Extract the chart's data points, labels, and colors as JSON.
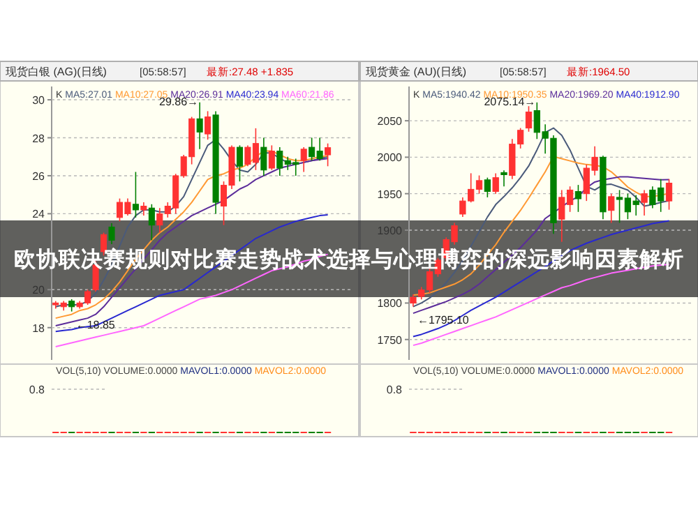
{
  "chart_data": [
    {
      "type": "candlestick",
      "title": "现货白银 (AG)(日线)",
      "subtitle": "欧协联决赛规则对比赛走势战术选择与心理博弈的深远影响因素解析",
      "annotations": [
        "[05:58:57]",
        "最新:27.48 +1.835",
        "K",
        "29.86→",
        "←18.85"
      ],
      "categories": [
        null,
        null,
        null,
        null,
        null,
        null,
        null,
        null,
        null,
        null,
        null,
        null,
        null,
        null,
        null,
        null,
        null,
        null,
        null,
        null,
        null,
        null,
        null,
        null,
        null,
        null,
        null,
        null,
        null,
        null,
        null,
        null,
        null,
        null,
        null
      ],
      "colors": [
        "#ff3232",
        "#ff3232",
        "#008000",
        "#ff3232",
        "#ff3232",
        "#ff3232",
        "#ff3232",
        "#008000",
        "#ff3232",
        "#ff3232",
        "#008000",
        "#ff3232",
        "#008000",
        "#ff3232",
        "#ff3232",
        "#ff3232",
        "#ff3232",
        "#ff3232",
        "#008000",
        "#ff3232",
        "#008000",
        "#ff3232",
        "#ff3232",
        "#008000",
        "#ff3232",
        "#ff3232",
        "#008000",
        "#ff3232",
        "#008000",
        "#008000",
        "#008000",
        "#ff3232",
        "#008000",
        "#008000",
        "#ff3232"
      ],
      "ohlc": [
        [
          19.2,
          19.4,
          19.0,
          19.3
        ],
        [
          19.1,
          19.4,
          18.9,
          19.3
        ],
        [
          19.4,
          19.5,
          18.85,
          19.1
        ],
        [
          19.1,
          19.4,
          19.0,
          19.3
        ],
        [
          19.3,
          20.0,
          19.2,
          19.9
        ],
        [
          20.0,
          21.5,
          19.9,
          21.3
        ],
        [
          22.0,
          23.0,
          21.8,
          22.9
        ],
        [
          23.3,
          23.5,
          22.4,
          22.6
        ],
        [
          23.8,
          24.8,
          23.6,
          24.6
        ],
        [
          24.0,
          24.8,
          23.9,
          24.6
        ],
        [
          24.5,
          26.2,
          23.8,
          24.2
        ],
        [
          24.2,
          24.6,
          23.9,
          24.4
        ],
        [
          24.3,
          24.5,
          22.6,
          23.4
        ],
        [
          23.4,
          24.3,
          23.0,
          24.0
        ],
        [
          24.0,
          24.6,
          23.8,
          24.4
        ],
        [
          24.3,
          26.1,
          24.0,
          26.0
        ],
        [
          26.0,
          27.1,
          25.9,
          27.0
        ],
        [
          27.0,
          29.1,
          26.6,
          29.0
        ],
        [
          29.0,
          29.86,
          27.4,
          28.3
        ],
        [
          28.2,
          29.4,
          27.9,
          29.1
        ],
        [
          29.2,
          29.4,
          24.0,
          24.6
        ],
        [
          24.4,
          25.7,
          23.4,
          25.5
        ],
        [
          25.5,
          27.6,
          25.3,
          27.5
        ],
        [
          27.5,
          27.6,
          25.7,
          26.5
        ],
        [
          26.6,
          27.6,
          26.5,
          27.5
        ],
        [
          26.7,
          28.5,
          26.3,
          27.7
        ],
        [
          27.5,
          28.0,
          26.0,
          26.3
        ],
        [
          26.4,
          27.6,
          26.3,
          27.3
        ],
        [
          27.3,
          27.5,
          26.0,
          26.4
        ],
        [
          26.8,
          27.0,
          26.3,
          26.6
        ],
        [
          26.7,
          26.9,
          26.0,
          26.6
        ],
        [
          26.8,
          27.5,
          26.2,
          27.4
        ],
        [
          27.5,
          28.0,
          26.8,
          27.0
        ],
        [
          27.3,
          28.0,
          26.8,
          26.9
        ],
        [
          27.1,
          27.7,
          26.5,
          27.48
        ]
      ],
      "series": [
        {
          "type": "line",
          "name": "MA5:27.01",
          "color": "#4a5a7a",
          "values": [
            19.1,
            19.2,
            19.2,
            19.2,
            19.4,
            19.8,
            20.5,
            21.3,
            22.3,
            23.3,
            23.9,
            24.2,
            24.2,
            24.1,
            24.1,
            24.4,
            24.9,
            25.8,
            26.7,
            27.6,
            27.9,
            27.4,
            26.8,
            26.3,
            26.2,
            26.6,
            27.2,
            27.2,
            26.9,
            26.7,
            26.6,
            26.7,
            26.8,
            26.9,
            27.01
          ]
        },
        {
          "type": "line",
          "name": "MA10:27.05",
          "color": "#ff9933",
          "values": [
            18.5,
            18.6,
            18.7,
            18.9,
            19.0,
            19.2,
            19.5,
            19.9,
            20.4,
            21.0,
            21.6,
            22.1,
            22.6,
            23.0,
            23.3,
            23.7,
            24.1,
            24.6,
            25.2,
            25.8,
            26.0,
            26.1,
            26.3,
            26.4,
            26.6,
            27.0,
            27.3,
            27.3,
            27.1,
            26.9,
            26.8,
            26.8,
            26.9,
            27.0,
            27.05
          ]
        },
        {
          "type": "line",
          "name": "MA20:26.91",
          "color": "#5b2c9a",
          "values": [
            18.1,
            18.2,
            18.3,
            18.4,
            18.5,
            18.7,
            19.1,
            19.6,
            20.1,
            20.6,
            21.1,
            21.6,
            22.1,
            22.6,
            23.0,
            23.3,
            23.6,
            23.9,
            24.1,
            24.3,
            24.5,
            24.7,
            25.0,
            25.3,
            25.5,
            25.8,
            26.0,
            26.2,
            26.4,
            26.5,
            26.6,
            26.7,
            26.8,
            26.85,
            26.91
          ]
        },
        {
          "type": "line",
          "name": "MA40:23.94",
          "color": "#2828d0",
          "values": [
            17.8,
            17.85,
            17.9,
            18.0,
            18.05,
            18.1,
            18.3,
            18.5,
            18.7,
            18.9,
            19.1,
            19.3,
            19.5,
            19.7,
            19.8,
            19.9,
            20.0,
            20.3,
            20.6,
            20.9,
            21.2,
            21.5,
            21.8,
            22.1,
            22.4,
            22.7,
            22.9,
            23.1,
            23.3,
            23.45,
            23.6,
            23.7,
            23.8,
            23.9,
            23.94
          ]
        },
        {
          "type": "line",
          "name": "MA60:21.86",
          "color": "#ff66ff",
          "values": [
            17.0,
            17.1,
            17.2,
            17.3,
            17.4,
            17.5,
            17.6,
            17.7,
            17.8,
            17.9,
            18.0,
            18.1,
            18.3,
            18.5,
            18.7,
            18.9,
            19.1,
            19.3,
            19.5,
            19.6,
            19.7,
            19.85,
            20.0,
            20.2,
            20.4,
            20.6,
            20.8,
            21.0,
            21.1,
            21.2,
            21.35,
            21.5,
            21.6,
            21.75,
            21.86
          ]
        }
      ],
      "ylim": [
        16.3,
        30.7
      ],
      "yticks": [
        30,
        28,
        26,
        24,
        20,
        18
      ],
      "grid": "y",
      "legend": "top left"
    },
    {
      "type": "candlestick",
      "title": "现货黄金 (AU)(日线)",
      "annotations": [
        "[05:58:57]",
        "最新:1964.50",
        "K",
        "2075.14→",
        "←1795.10"
      ],
      "categories": [
        null,
        null,
        null,
        null,
        null,
        null,
        null,
        null,
        null,
        null,
        null,
        null,
        null,
        null,
        null,
        null,
        null,
        null,
        null,
        null,
        null,
        null,
        null,
        null,
        null,
        null,
        null,
        null,
        null,
        null,
        null,
        null
      ],
      "colors": [
        "#ff3232",
        "#ff3232",
        "#ff3232",
        "#ff3232",
        "#ff3232",
        "#ff3232",
        "#ff3232",
        "#ff3232",
        "#ff3232",
        "#008000",
        "#ff3232",
        "#008000",
        "#ff3232",
        "#ff3232",
        "#ff3232",
        "#008000",
        "#008000",
        "#008000",
        "#ff3232",
        "#ff3232",
        "#008000",
        "#ff3232",
        "#ff3232",
        "#008000",
        "#ff3232",
        "#008000",
        "#008000",
        "#008000",
        "#ff3232",
        "#008000",
        "#008000",
        "#ff3232"
      ],
      "ohlc": [
        [
          1800,
          1812,
          1795.1,
          1808
        ],
        [
          1809,
          1822,
          1805,
          1818
        ],
        [
          1818,
          1848,
          1814,
          1843
        ],
        [
          1840,
          1862,
          1836,
          1859
        ],
        [
          1862,
          1890,
          1858,
          1887
        ],
        [
          1884,
          1910,
          1880,
          1906
        ],
        [
          1922,
          1945,
          1918,
          1940
        ],
        [
          1940,
          1978,
          1938,
          1956
        ],
        [
          1956,
          1975,
          1950,
          1968
        ],
        [
          1969,
          1972,
          1945,
          1953
        ],
        [
          1953,
          1978,
          1950,
          1972
        ],
        [
          1979,
          1982,
          1960,
          1976
        ],
        [
          1975,
          2025,
          1970,
          2018
        ],
        [
          2018,
          2040,
          2012,
          2037
        ],
        [
          2040,
          2070,
          2035,
          2062
        ],
        [
          2064,
          2075.14,
          2025,
          2034
        ],
        [
          2035,
          2045,
          2005,
          2026
        ],
        [
          2026,
          2030,
          1895,
          1910
        ],
        [
          1915,
          1955,
          1884,
          1945
        ],
        [
          1935,
          1960,
          1925,
          1955
        ],
        [
          1953,
          1962,
          1925,
          1943
        ],
        [
          1950,
          1990,
          1940,
          1985
        ],
        [
          1982,
          2015,
          1975,
          2000
        ],
        [
          2000,
          2002,
          1915,
          1925
        ],
        [
          1927,
          1950,
          1910,
          1946
        ],
        [
          1945,
          1955,
          1910,
          1942
        ],
        [
          1944,
          1950,
          1915,
          1925
        ],
        [
          1940,
          1948,
          1920,
          1935
        ],
        [
          1938,
          1955,
          1920,
          1950
        ],
        [
          1955,
          1960,
          1930,
          1935
        ],
        [
          1958,
          1970,
          1925,
          1940
        ],
        [
          1940,
          1970,
          1928,
          1964.5
        ]
      ],
      "series": [
        {
          "type": "line",
          "name": "MA5:1940.42",
          "color": "#4a5a7a",
          "values": [
            1795,
            1800,
            1807,
            1816,
            1828,
            1842,
            1858,
            1878,
            1898,
            1918,
            1935,
            1946,
            1958,
            1972,
            1988,
            2010,
            2034,
            2040,
            2030,
            2010,
            1985,
            1960,
            1955,
            1962,
            1963,
            1959,
            1955,
            1945,
            1933,
            1935,
            1938,
            1940.42
          ]
        },
        {
          "type": "line",
          "name": "MA10:1950.35",
          "color": "#ff9933",
          "values": [
            1811,
            1812,
            1814,
            1818,
            1822,
            1826,
            1832,
            1840,
            1852,
            1866,
            1880,
            1897,
            1912,
            1927,
            1944,
            1962,
            1980,
            2001,
            1998,
            1995,
            1992,
            1990,
            1989,
            1987,
            1980,
            1970,
            1959,
            1952,
            1946,
            1946,
            1948,
            1950.35
          ]
        },
        {
          "type": "line",
          "name": "MA20:1969.20",
          "color": "#5b2c9a",
          "values": [
            1786,
            1790,
            1794,
            1798,
            1802,
            1807,
            1812,
            1818,
            1826,
            1836,
            1846,
            1856,
            1866,
            1876,
            1888,
            1900,
            1916,
            1924,
            1932,
            1940,
            1946,
            1958,
            1966,
            1969,
            1971,
            1973,
            1973,
            1972,
            1971,
            1970,
            1969,
            1969.2
          ]
        },
        {
          "type": "line",
          "name": "MA40:1912.90",
          "color": "#2828d0",
          "values": [
            1754,
            1757,
            1761,
            1765,
            1770,
            1776,
            1783,
            1790,
            1796,
            1802,
            1808,
            1815,
            1822,
            1829,
            1836,
            1843,
            1850,
            1858,
            1865,
            1872,
            1877,
            1882,
            1886,
            1890,
            1894,
            1897,
            1900,
            1903,
            1906,
            1909,
            1911,
            1912.9
          ]
        },
        {
          "type": "line",
          "color": "#ff66ff",
          "values": [
            1742,
            1745,
            1749,
            1753,
            1757,
            1761,
            1765,
            1769,
            1773,
            1777,
            1781,
            1786,
            1791,
            1796,
            1801,
            1806,
            1811,
            1816,
            1821,
            1824,
            1828,
            1832,
            1835,
            1838,
            1841,
            1843,
            1845,
            1847,
            1849,
            1851,
            1852,
            1853
          ]
        }
      ],
      "ylim": [
        1722,
        2097
      ],
      "yticks": [
        2050,
        2000,
        1950,
        1900,
        1800,
        1750
      ],
      "grid": "y",
      "legend": "top left"
    },
    {
      "type": "other",
      "title": "VOL(5,10)",
      "annotations": [
        "VOLUME:0.0000",
        "MAVOL1:0.0000",
        "MAVOL2:0.0000",
        "0.8"
      ],
      "colors": [
        "#ff3232",
        "#ff3232",
        "#008000",
        "#ff3232",
        "#ff3232",
        "#ff3232",
        "#ff3232",
        "#008000",
        "#ff3232",
        "#ff3232",
        "#008000",
        "#ff3232",
        "#008000",
        "#ff3232",
        "#ff3232",
        "#ff3232",
        "#ff3232",
        "#ff3232",
        "#008000",
        "#ff3232",
        "#008000",
        "#ff3232",
        "#ff3232",
        "#008000",
        "#ff3232",
        "#ff3232",
        "#008000",
        "#ff3232",
        "#008000",
        "#008000",
        "#008000",
        "#ff3232",
        "#008000",
        "#008000",
        "#ff3232"
      ]
    },
    {
      "type": "other",
      "title": "VOL(5,10)",
      "annotations": [
        "VOLUME:0.0000",
        "MAVOL1:0.0000",
        "MAVOL2:0.0000",
        "0.8"
      ],
      "colors": [
        "#ff3232",
        "#ff3232",
        "#ff3232",
        "#ff3232",
        "#ff3232",
        "#ff3232",
        "#ff3232",
        "#ff3232",
        "#ff3232",
        "#008000",
        "#ff3232",
        "#008000",
        "#ff3232",
        "#ff3232",
        "#ff3232",
        "#008000",
        "#008000",
        "#008000",
        "#ff3232",
        "#ff3232",
        "#008000",
        "#ff3232",
        "#ff3232",
        "#008000",
        "#ff3232",
        "#008000",
        "#008000",
        "#008000",
        "#ff3232",
        "#008000",
        "#008000",
        "#ff3232"
      ]
    }
  ]
}
